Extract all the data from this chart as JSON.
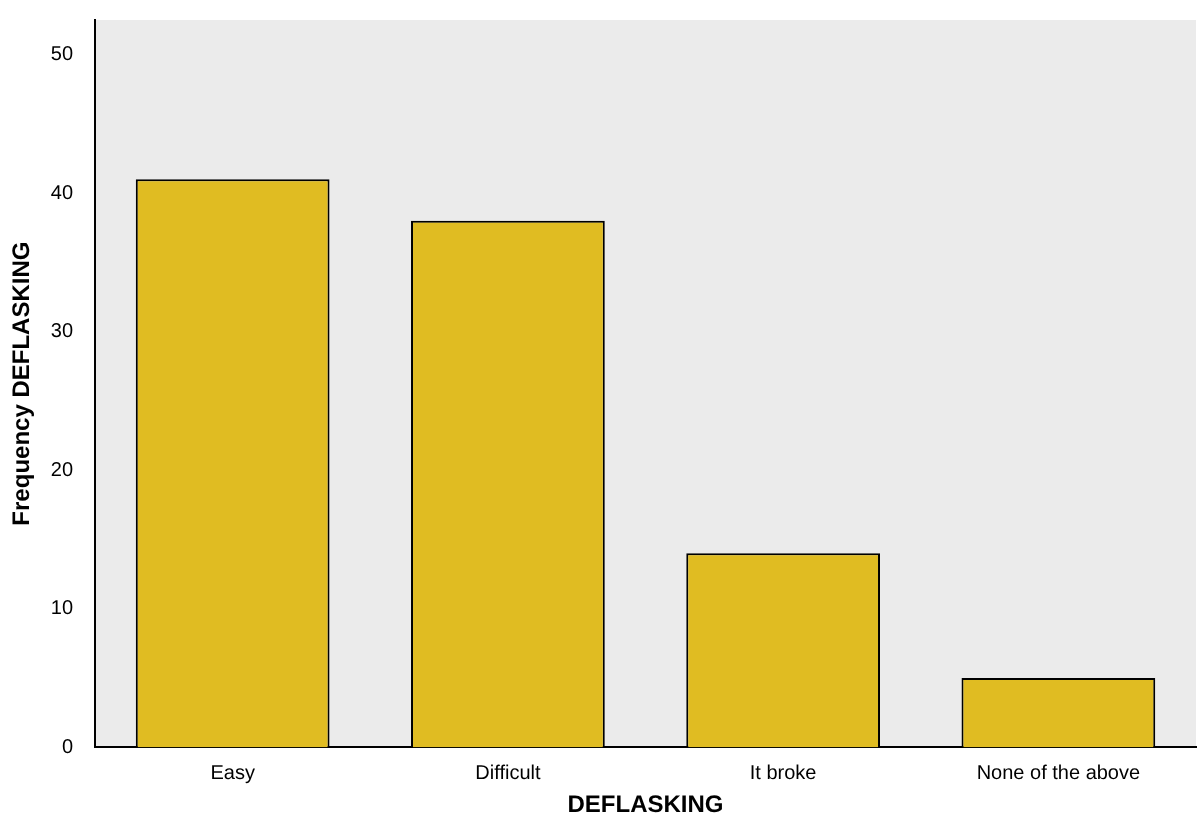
{
  "chart_data": {
    "type": "bar",
    "xlabel": "DEFLASKING",
    "ylabel": "Frequency DEFLASKING",
    "categories": [
      "Easy",
      "Difficult",
      "It broke",
      "None of the above"
    ],
    "values": [
      41,
      38,
      14,
      5
    ],
    "color": "#e0bc22",
    "ylim": [
      0,
      52.5
    ],
    "yticks": [
      0,
      10,
      20,
      30,
      40,
      50
    ],
    "grid": false,
    "legend": false
  }
}
